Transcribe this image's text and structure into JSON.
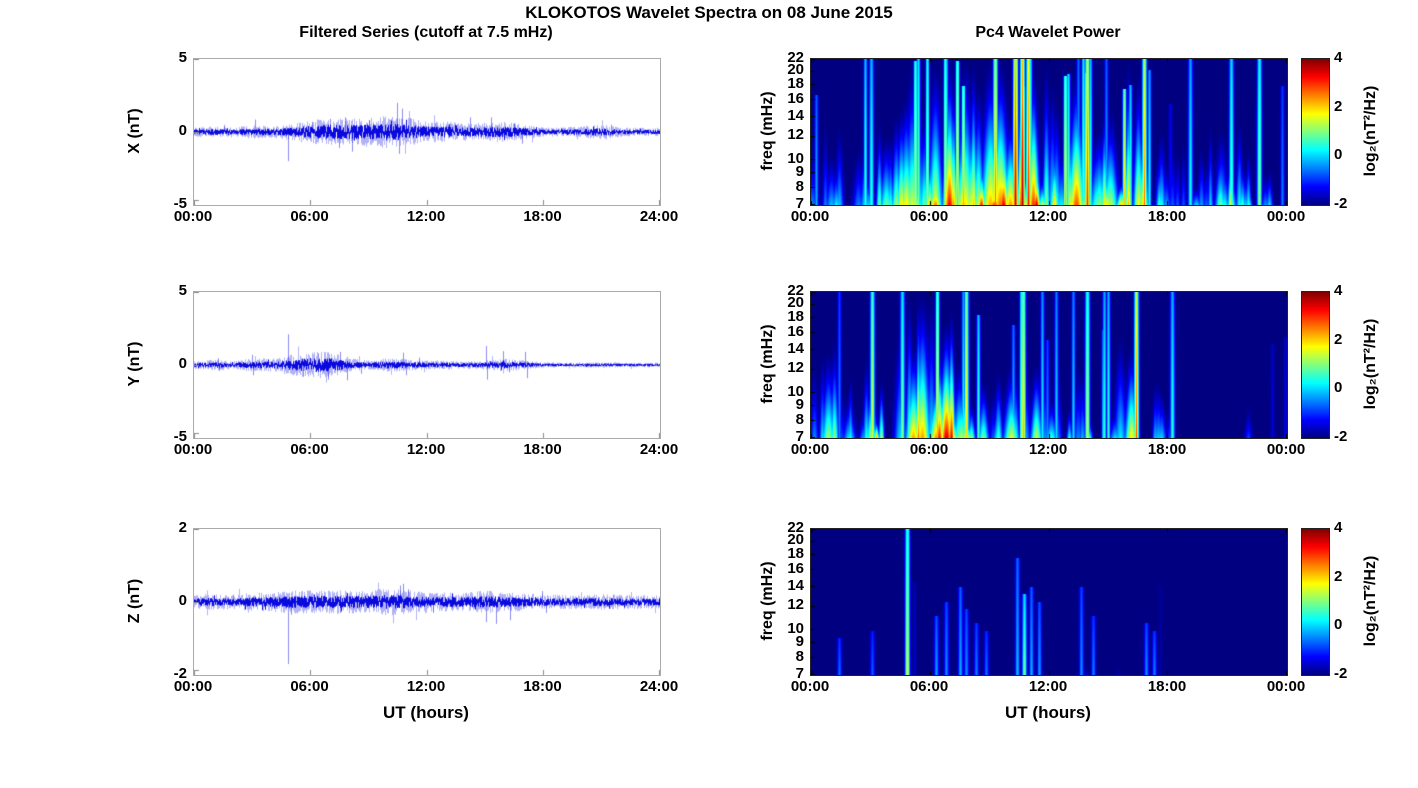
{
  "figure": {
    "title": "KLOKOTOS Wavelet Spectra on 08 June 2015",
    "left_title": "Filtered Series (cutoff at 7.5 mHz)",
    "right_title": "Pc4 Wavelet Power",
    "xlabel": "UT (hours)",
    "trace_color": "#0000DE",
    "spectrogram_background": "#000080"
  },
  "chart_data": [
    {
      "id": "x-filtered-series",
      "type": "line",
      "row": 0,
      "col": "left",
      "ylabel": "X (nT)",
      "ylim": [
        -5,
        5
      ],
      "yticks": [
        "5",
        "0",
        "-5"
      ],
      "x_range_hours": [
        0,
        24
      ],
      "xticks": [
        "00:00",
        "06:00",
        "12:00",
        "18:00",
        "24:00"
      ],
      "line_color": "#0000DE",
      "noise_amp_hourly": [
        0.1,
        0.12,
        0.1,
        0.15,
        0.12,
        0.18,
        0.25,
        0.3,
        0.28,
        0.3,
        0.35,
        0.3,
        0.22,
        0.22,
        0.18,
        0.2,
        0.22,
        0.16,
        0.1,
        0.1,
        0.12,
        0.16,
        0.1,
        0.09
      ],
      "spikes": [
        {
          "t": 1.55,
          "v": 0.4
        },
        {
          "t": 3.15,
          "v": 0.85
        },
        {
          "t": 4.85,
          "v": -2.0
        },
        {
          "t": 6.1,
          "v": 0.7
        },
        {
          "t": 7.0,
          "v": 0.9
        },
        {
          "t": 7.45,
          "v": -1.1
        },
        {
          "t": 7.8,
          "v": 1.0
        },
        {
          "t": 8.15,
          "v": -1.35
        },
        {
          "t": 9.0,
          "v": 0.8
        },
        {
          "t": 10.45,
          "v": 2.0
        },
        {
          "t": 10.55,
          "v": -1.5
        },
        {
          "t": 10.7,
          "v": 1.6
        },
        {
          "t": 11.15,
          "v": 0.95
        },
        {
          "t": 12.4,
          "v": 0.6
        },
        {
          "t": 14.2,
          "v": 1.0
        },
        {
          "t": 15.3,
          "v": 1.0
        },
        {
          "t": 16.5,
          "v": 0.6
        },
        {
          "t": 16.9,
          "v": -0.8
        },
        {
          "t": 21.5,
          "v": 0.5
        }
      ],
      "seed": 101
    },
    {
      "id": "x-wavelet-power",
      "type": "heatmap",
      "row": 0,
      "col": "right",
      "ylabel": "freq (mHz)",
      "freq_range_mhz": [
        7,
        22
      ],
      "yscale": "log",
      "yticks": [
        22,
        20,
        18,
        16,
        14,
        12,
        10,
        9,
        8,
        7
      ],
      "x_range_hours": [
        0,
        24
      ],
      "xticks": [
        "00:00",
        "06:00",
        "12:00",
        "18:00",
        "00:00"
      ],
      "value_range": [
        -2,
        4
      ],
      "background_value": -2,
      "colormap": "jet",
      "colorbar": {
        "label": "log₂(nT²/Hz)",
        "ticks": [
          "4",
          "2",
          "0",
          "-2"
        ],
        "range": [
          -2,
          4
        ]
      },
      "activity_hourly": [
        0.5,
        0.45,
        0.55,
        0.7,
        0.6,
        0.75,
        0.85,
        0.9,
        0.88,
        0.95,
        1.0,
        1.0,
        0.8,
        0.85,
        0.7,
        0.75,
        0.85,
        0.6,
        0.4,
        0.45,
        0.5,
        0.6,
        0.45,
        0.35
      ],
      "streak_density": 0.85,
      "needles": [
        {
          "t": 3.0,
          "v": 0.6,
          "hfrac": 1.0
        },
        {
          "t": 9.3,
          "v": 2.6,
          "hfrac": 1.0
        },
        {
          "t": 10.3,
          "v": 3.6,
          "hfrac": 1.0
        },
        {
          "t": 10.65,
          "v": 3.8,
          "hfrac": 1.0
        },
        {
          "t": 10.95,
          "v": 3.2,
          "hfrac": 1.0
        },
        {
          "t": 13.9,
          "v": 3.0,
          "hfrac": 1.0
        },
        {
          "t": 16.8,
          "v": 2.6,
          "hfrac": 1.0
        },
        {
          "t": 19.1,
          "v": 0.4,
          "hfrac": 1.0
        },
        {
          "t": 21.2,
          "v": 0.9,
          "hfrac": 1.0
        },
        {
          "t": 22.6,
          "v": 1.3,
          "hfrac": 1.0
        }
      ],
      "seed": 202
    },
    {
      "id": "y-filtered-series",
      "type": "line",
      "row": 1,
      "col": "left",
      "ylabel": "Y (nT)",
      "ylim": [
        -5,
        5
      ],
      "yticks": [
        "5",
        "0",
        "-5"
      ],
      "x_range_hours": [
        0,
        24
      ],
      "xticks": [
        "00:00",
        "06:00",
        "12:00",
        "18:00",
        "24:00"
      ],
      "line_color": "#0000DE",
      "noise_amp_hourly": [
        0.08,
        0.12,
        0.09,
        0.14,
        0.14,
        0.22,
        0.28,
        0.28,
        0.14,
        0.1,
        0.15,
        0.12,
        0.1,
        0.1,
        0.08,
        0.1,
        0.14,
        0.1,
        0.06,
        0.05,
        0.05,
        0.06,
        0.05,
        0.05
      ],
      "spikes": [
        {
          "t": 1.25,
          "v": 0.45
        },
        {
          "t": 1.3,
          "v": -0.4
        },
        {
          "t": 3.0,
          "v": 0.7
        },
        {
          "t": 3.05,
          "v": -0.7
        },
        {
          "t": 4.85,
          "v": 2.1
        },
        {
          "t": 5.6,
          "v": -0.8
        },
        {
          "t": 6.4,
          "v": 0.8
        },
        {
          "t": 6.9,
          "v": -1.0
        },
        {
          "t": 7.5,
          "v": 0.9
        },
        {
          "t": 7.9,
          "v": -1.05
        },
        {
          "t": 8.6,
          "v": -0.6
        },
        {
          "t": 10.75,
          "v": 0.85
        },
        {
          "t": 10.9,
          "v": -0.7
        },
        {
          "t": 11.6,
          "v": 0.5
        },
        {
          "t": 15.05,
          "v": 1.3
        },
        {
          "t": 15.1,
          "v": -1.0
        },
        {
          "t": 15.9,
          "v": 0.95
        },
        {
          "t": 16.2,
          "v": -0.5
        },
        {
          "t": 17.05,
          "v": 0.9
        },
        {
          "t": 17.15,
          "v": -0.9
        }
      ],
      "seed": 103
    },
    {
      "id": "y-wavelet-power",
      "type": "heatmap",
      "row": 1,
      "col": "right",
      "ylabel": "freq (mHz)",
      "freq_range_mhz": [
        7,
        22
      ],
      "yscale": "log",
      "yticks": [
        22,
        20,
        18,
        16,
        14,
        12,
        10,
        9,
        8,
        7
      ],
      "x_range_hours": [
        0,
        24
      ],
      "xticks": [
        "00:00",
        "06:00",
        "12:00",
        "18:00",
        "00:00"
      ],
      "value_range": [
        -2,
        4
      ],
      "background_value": -2,
      "colormap": "jet",
      "colorbar": {
        "label": "log₂(nT²/Hz)",
        "ticks": [
          "4",
          "2",
          "0",
          "-2"
        ],
        "range": [
          -2,
          4
        ]
      },
      "activity_hourly": [
        0.5,
        0.6,
        0.5,
        0.7,
        0.65,
        0.9,
        1.0,
        0.95,
        0.6,
        0.4,
        0.7,
        0.65,
        0.5,
        0.6,
        0.45,
        0.5,
        0.75,
        0.5,
        0.3,
        0.12,
        0.18,
        0.22,
        0.18,
        0.12
      ],
      "streak_density": 0.72,
      "needles": [
        {
          "t": 3.1,
          "v": 1.6,
          "hfrac": 1.0
        },
        {
          "t": 4.6,
          "v": 1.0,
          "hfrac": 1.0
        },
        {
          "t": 7.8,
          "v": 2.0,
          "hfrac": 1.0
        },
        {
          "t": 10.7,
          "v": 2.2,
          "hfrac": 1.0
        },
        {
          "t": 13.9,
          "v": 1.6,
          "hfrac": 1.0
        },
        {
          "t": 16.4,
          "v": 2.8,
          "hfrac": 1.0
        },
        {
          "t": 18.2,
          "v": 0.5,
          "hfrac": 1.0
        }
      ],
      "seed": 204
    },
    {
      "id": "z-filtered-series",
      "type": "line",
      "row": 2,
      "col": "left",
      "ylabel": "Z (nT)",
      "ylim": [
        -2,
        2
      ],
      "yticks": [
        "2",
        "0",
        "-2"
      ],
      "x_range_hours": [
        0,
        24
      ],
      "xticks": [
        "00:00",
        "06:00",
        "12:00",
        "18:00",
        "24:00"
      ],
      "line_color": "#0000DE",
      "noise_amp_hourly": [
        0.06,
        0.07,
        0.06,
        0.08,
        0.08,
        0.1,
        0.1,
        0.1,
        0.1,
        0.1,
        0.12,
        0.1,
        0.08,
        0.08,
        0.08,
        0.1,
        0.08,
        0.08,
        0.06,
        0.06,
        0.06,
        0.07,
        0.06,
        0.06
      ],
      "spikes": [
        {
          "t": 2.0,
          "v": 0.2
        },
        {
          "t": 4.85,
          "v": -1.7
        },
        {
          "t": 5.0,
          "v": -0.35
        },
        {
          "t": 7.5,
          "v": -0.3
        },
        {
          "t": 10.6,
          "v": 0.45
        },
        {
          "t": 10.75,
          "v": 0.5
        },
        {
          "t": 11.0,
          "v": 0.35
        },
        {
          "t": 12.3,
          "v": -0.3
        },
        {
          "t": 15.05,
          "v": -0.55
        },
        {
          "t": 15.55,
          "v": -0.6
        },
        {
          "t": 16.3,
          "v": -0.5
        },
        {
          "t": 17.9,
          "v": 0.3
        },
        {
          "t": 18.15,
          "v": -0.3
        },
        {
          "t": 21.6,
          "v": 0.2
        }
      ],
      "seed": 105
    },
    {
      "id": "z-wavelet-power",
      "type": "heatmap",
      "row": 2,
      "col": "right",
      "ylabel": "freq (mHz)",
      "freq_range_mhz": [
        7,
        22
      ],
      "yscale": "log",
      "yticks": [
        22,
        20,
        18,
        16,
        14,
        12,
        10,
        9,
        8,
        7
      ],
      "x_range_hours": [
        0,
        24
      ],
      "xticks": [
        "00:00",
        "06:00",
        "12:00",
        "18:00",
        "00:00"
      ],
      "value_range": [
        -2,
        4
      ],
      "background_value": -2,
      "colormap": "jet",
      "colorbar": {
        "label": "log₂(nT²/Hz)",
        "ticks": [
          "4",
          "2",
          "0",
          "-2"
        ],
        "range": [
          -2,
          4
        ]
      },
      "activity_hourly": [
        0.05,
        0.08,
        0.05,
        0.08,
        0.06,
        0.1,
        0.12,
        0.14,
        0.1,
        0.08,
        0.14,
        0.12,
        0.1,
        0.1,
        0.08,
        0.1,
        0.08,
        0.06,
        0.04,
        0.03,
        0.03,
        0.03,
        0.03,
        0.03
      ],
      "streak_density": 0.25,
      "needles": [
        {
          "t": 4.85,
          "v": 1.7,
          "hfrac": 1.0,
          "w": 1.6
        },
        {
          "t": 1.4,
          "v": -0.6,
          "hfrac": 0.25
        },
        {
          "t": 3.1,
          "v": -0.7,
          "hfrac": 0.3
        },
        {
          "t": 6.3,
          "v": -0.3,
          "hfrac": 0.4
        },
        {
          "t": 6.8,
          "v": -0.4,
          "hfrac": 0.5
        },
        {
          "t": 7.5,
          "v": -0.2,
          "hfrac": 0.6
        },
        {
          "t": 7.8,
          "v": -0.4,
          "hfrac": 0.45
        },
        {
          "t": 8.3,
          "v": -0.5,
          "hfrac": 0.35
        },
        {
          "t": 8.8,
          "v": -0.6,
          "hfrac": 0.3
        },
        {
          "t": 10.4,
          "v": -0.1,
          "hfrac": 0.8
        },
        {
          "t": 10.75,
          "v": 0.9,
          "hfrac": 0.55
        },
        {
          "t": 11.1,
          "v": -0.2,
          "hfrac": 0.6
        },
        {
          "t": 11.5,
          "v": -0.3,
          "hfrac": 0.5
        },
        {
          "t": 13.6,
          "v": -0.4,
          "hfrac": 0.6
        },
        {
          "t": 14.2,
          "v": -0.5,
          "hfrac": 0.4
        },
        {
          "t": 16.9,
          "v": -0.4,
          "hfrac": 0.35
        },
        {
          "t": 17.3,
          "v": -0.5,
          "hfrac": 0.3
        }
      ],
      "seed": 206
    }
  ]
}
